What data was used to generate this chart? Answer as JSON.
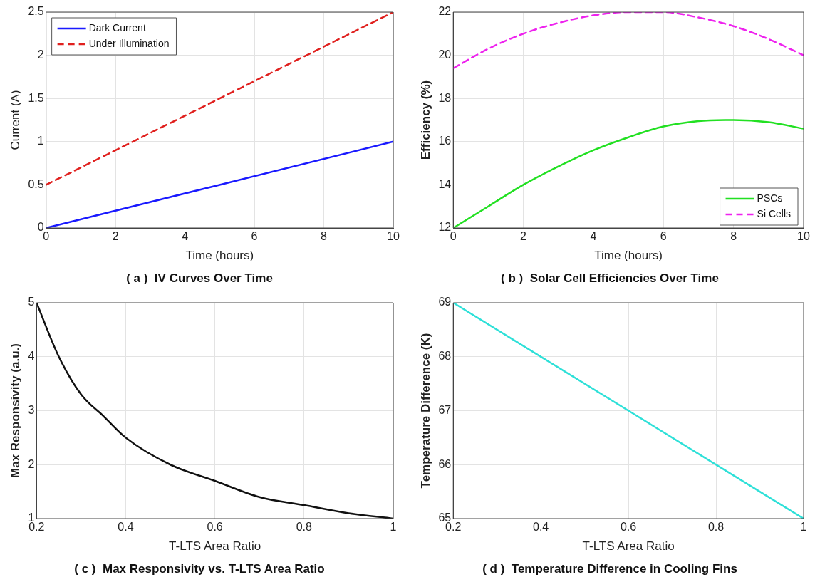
{
  "chart_data": [
    {
      "type": "line",
      "title": "( a )  IV Curves Over Time",
      "xlabel": "Time (hours)",
      "ylabel": "Current (A)",
      "xlim": [
        0,
        10
      ],
      "xticks": [
        0,
        2,
        4,
        6,
        8,
        10
      ],
      "ylim": [
        0,
        2.5
      ],
      "yticks": [
        0,
        0.5,
        1,
        1.5,
        2,
        2.5
      ],
      "grid": true,
      "legend": "top left",
      "marker": "none",
      "series": [
        {
          "name": "Dark Current",
          "color": "#1a1aff",
          "line_style": "solid",
          "x": [
            0,
            10
          ],
          "values": [
            0,
            1
          ]
        },
        {
          "name": "Under Illumination",
          "color": "#e0201e",
          "line_style": "dashed",
          "x": [
            0,
            10
          ],
          "values": [
            0.5,
            2.5
          ]
        }
      ]
    },
    {
      "type": "line",
      "title": "( b )  Solar Cell Efficiencies Over Time",
      "xlabel": "Time (hours)",
      "ylabel": "Efficiency (%)",
      "xlim": [
        0,
        10
      ],
      "xticks": [
        0,
        2,
        4,
        6,
        8,
        10
      ],
      "ylim": [
        12,
        22
      ],
      "yticks": [
        12,
        14,
        16,
        18,
        20,
        22
      ],
      "grid": true,
      "legend": "bottom right",
      "marker": "none",
      "series": [
        {
          "name": "PSCs",
          "color": "#22e022",
          "line_style": "solid",
          "x": [
            0,
            1,
            2,
            3,
            4,
            5,
            6,
            7,
            8,
            9,
            10
          ],
          "values": [
            12,
            13,
            14,
            14.85,
            15.6,
            16.2,
            16.7,
            16.95,
            17,
            16.9,
            16.6
          ]
        },
        {
          "name": "Si Cells",
          "color": "#ee22ee",
          "line_style": "dashed",
          "x": [
            0,
            1,
            2,
            3,
            4,
            5,
            6,
            7,
            8,
            9,
            10
          ],
          "values": [
            19.4,
            20.3,
            21,
            21.5,
            21.85,
            22,
            22,
            21.75,
            21.35,
            20.75,
            20
          ]
        }
      ]
    },
    {
      "type": "line",
      "title": "( c )  Max Responsivity vs. T-LTS Area Ratio",
      "xlabel": "T-LTS Area Ratio",
      "ylabel": "Max Responsivity (a.u.)",
      "xlim": [
        0.2,
        1
      ],
      "xticks": [
        0.2,
        0.4,
        0.6,
        0.8,
        1
      ],
      "ylim": [
        1,
        5
      ],
      "yticks": [
        1,
        2,
        3,
        4,
        5
      ],
      "grid": true,
      "marker": "none",
      "series": [
        {
          "color": "#111111",
          "line_style": "solid",
          "x": [
            0.2,
            0.25,
            0.3,
            0.35,
            0.4,
            0.5,
            0.6,
            0.7,
            0.8,
            0.9,
            1
          ],
          "values": [
            5,
            4,
            3.3,
            2.9,
            2.5,
            2,
            1.7,
            1.4,
            1.25,
            1.1,
            1
          ]
        }
      ]
    },
    {
      "type": "line",
      "title": "( d )  Temperature Difference in Cooling Fins",
      "xlabel": "T-LTS Area Ratio",
      "ylabel": "Temperature Difference (K)",
      "xlim": [
        0.2,
        1
      ],
      "xticks": [
        0.2,
        0.4,
        0.6,
        0.8,
        1
      ],
      "ylim": [
        65,
        69
      ],
      "yticks": [
        65,
        66,
        67,
        68,
        69
      ],
      "grid": true,
      "marker": "none",
      "series": [
        {
          "color": "#2ee0d8",
          "line_style": "solid",
          "x": [
            0.2,
            1
          ],
          "values": [
            69,
            65
          ]
        }
      ]
    }
  ]
}
